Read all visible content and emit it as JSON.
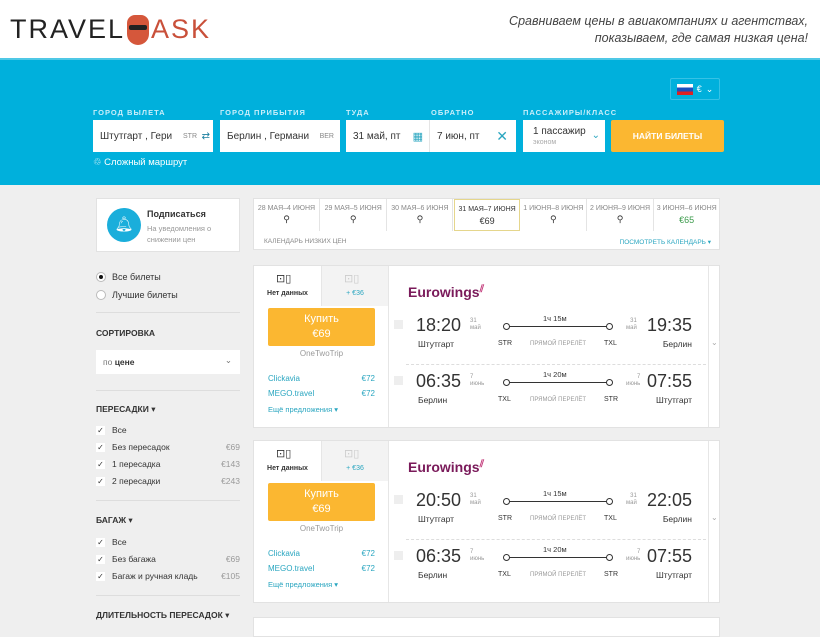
{
  "header": {
    "logo_left": "TRAVEL",
    "logo_right": "ASK",
    "tagline_1": "Сравниваем цены в авиакомпаниях и агентствах,",
    "tagline_2": "показываем, где самая низкая цена!",
    "currency": "€"
  },
  "search": {
    "from_label": "ГОРОД ВЫЛЕТА",
    "from_value": "Штутгарт , Гери",
    "from_code": "STR",
    "to_label": "ГОРОД ПРИБЫТИЯ",
    "to_value": "Берлин , Германи",
    "to_code": "BER",
    "depart_label": "ТУДА",
    "depart_value": "31 май, пт",
    "return_label": "ОБРАТНО",
    "return_value": "7 июн, пт",
    "pax_label": "ПАССАЖИРЫ/КЛАСС",
    "pax_value": "1 пассажир",
    "class_value": "эконом",
    "find_button": "НАЙТИ БИЛЕТЫ",
    "complex_route": "Сложный маршрут"
  },
  "subscribe": {
    "title": "Подписаться",
    "text_1": "На уведомления о",
    "text_2": "снижении цен"
  },
  "filters": {
    "all_tickets": "Все билеты",
    "best_tickets": "Лучшие билеты",
    "sort_label": "СОРТИРОВКА",
    "sort_prefix": "по ",
    "sort_value": "цене",
    "stops_label": "ПЕРЕСАДКИ ▾",
    "stops": [
      {
        "label": "Все",
        "price": ""
      },
      {
        "label": "Без пересадок",
        "price": "€69"
      },
      {
        "label": "1 пересадка",
        "price": "€143"
      },
      {
        "label": "2 пересадки",
        "price": "€243"
      }
    ],
    "baggage_label": "БАГАЖ ▾",
    "baggage": [
      {
        "label": "Все",
        "price": ""
      },
      {
        "label": "Без багажа",
        "price": "€69"
      },
      {
        "label": "Багаж и ручная кладь",
        "price": "€105"
      }
    ],
    "duration_label": "ДЛИТЕЛЬНОСТЬ ПЕРЕСАДОК ▾"
  },
  "calendar": {
    "days": [
      {
        "label": "28 МАЯ–4 ИЮНЯ",
        "price": ""
      },
      {
        "label": "29 МАЯ–5 ИЮНЯ",
        "price": ""
      },
      {
        "label": "30 МАЯ–6 ИЮНЯ",
        "price": ""
      },
      {
        "label": "31 МАЯ–7 ИЮНЯ",
        "price": "€69"
      },
      {
        "label": "1 ИЮНЯ–8 ИЮНЯ",
        "price": ""
      },
      {
        "label": "2 ИЮНЯ–9 ИЮНЯ",
        "price": ""
      },
      {
        "label": "3 ИЮНЯ–6 ИЮНЯ",
        "price": "€65"
      }
    ],
    "selected_index": 3,
    "low_label": "КАЛЕНДАРЬ НИЗКИХ ЦЕН",
    "view_link": "ПОСМОТРЕТЬ КАЛЕНДАРЬ ▾"
  },
  "colors": {
    "brand_blue": "#00b0dc",
    "button_orange": "#fbb731",
    "airline": "#7a1a5a",
    "link_teal": "#2aa6c0",
    "green_price": "#3a9a4a"
  },
  "results": [
    {
      "tab1": "Нет данных",
      "tab2": "+ €36",
      "buy": "Купить",
      "price": "€69",
      "agency": "OneTwoTrip",
      "offers": [
        {
          "name": "Clickavia",
          "price": "€72"
        },
        {
          "name": "MEGO.travel",
          "price": "€72"
        }
      ],
      "more": "Ещё предложения ▾",
      "airline": "Eurowings",
      "segments": [
        {
          "dep": "18:20",
          "dep_day": "31",
          "dep_mon": "май",
          "dep_city": "Штутгарт",
          "dep_ap": "STR",
          "dur": "1ч 15м",
          "type": "ПРЯМОЙ ПЕРЕЛЁТ",
          "arr_ap": "TXL",
          "arr": "19:35",
          "arr_day": "31",
          "arr_mon": "май",
          "arr_city": "Берлин"
        },
        {
          "dep": "06:35",
          "dep_day": "7",
          "dep_mon": "июнь",
          "dep_city": "Берлин",
          "dep_ap": "TXL",
          "dur": "1ч 20м",
          "type": "ПРЯМОЙ ПЕРЕЛЁТ",
          "arr_ap": "STR",
          "arr": "07:55",
          "arr_day": "7",
          "arr_mon": "июнь",
          "arr_city": "Штутгарт"
        }
      ]
    },
    {
      "tab1": "Нет данных",
      "tab2": "+ €36",
      "buy": "Купить",
      "price": "€69",
      "agency": "OneTwoTrip",
      "offers": [
        {
          "name": "Clickavia",
          "price": "€72"
        },
        {
          "name": "MEGO.travel",
          "price": "€72"
        }
      ],
      "more": "Ещё предложения ▾",
      "airline": "Eurowings",
      "segments": [
        {
          "dep": "20:50",
          "dep_day": "31",
          "dep_mon": "май",
          "dep_city": "Штутгарт",
          "dep_ap": "STR",
          "dur": "1ч 15м",
          "type": "ПРЯМОЙ ПЕРЕЛЁТ",
          "arr_ap": "TXL",
          "arr": "22:05",
          "arr_day": "31",
          "arr_mon": "май",
          "arr_city": "Берлин"
        },
        {
          "dep": "06:35",
          "dep_day": "7",
          "dep_mon": "июнь",
          "dep_city": "Берлин",
          "dep_ap": "TXL",
          "dur": "1ч 20м",
          "type": "ПРЯМОЙ ПЕРЕЛЁТ",
          "arr_ap": "STR",
          "arr": "07:55",
          "arr_day": "7",
          "arr_mon": "июнь",
          "arr_city": "Штутгарт"
        }
      ]
    }
  ]
}
